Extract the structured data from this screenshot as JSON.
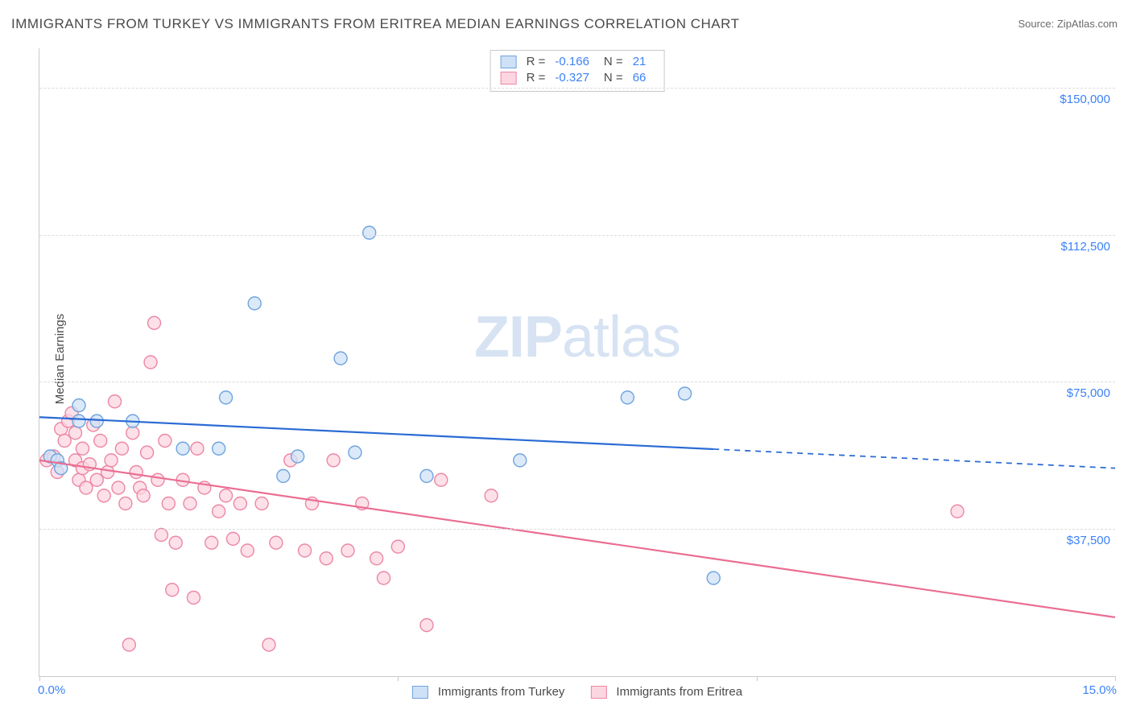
{
  "title": "IMMIGRANTS FROM TURKEY VS IMMIGRANTS FROM ERITREA MEDIAN EARNINGS CORRELATION CHART",
  "source_label": "Source: ZipAtlas.com",
  "yaxis_title": "Median Earnings",
  "watermark_bold": "ZIP",
  "watermark_light": "atlas",
  "chart": {
    "type": "scatter",
    "xlim": [
      0,
      15
    ],
    "ylim": [
      0,
      160000
    ],
    "x_tick_positions": [
      0,
      5,
      10,
      15
    ],
    "x_tick_labels": {
      "start": "0.0%",
      "end": "15.0%"
    },
    "y_gridlines": [
      37500,
      75000,
      112500,
      150000
    ],
    "y_tick_labels": [
      "$37,500",
      "$75,000",
      "$112,500",
      "$150,000"
    ],
    "background_color": "#ffffff",
    "grid_color": "#dcdcdc",
    "axis_color": "#c9c9c9",
    "label_color": "#3b82f6",
    "marker_radius": 8,
    "marker_stroke_width": 1.4,
    "trend_line_width": 2.2,
    "series": [
      {
        "key": "turkey",
        "label": "Immigrants from Turkey",
        "fill": "#cfe1f6",
        "stroke": "#6fa4de",
        "line_color": "#2a6bd4",
        "r_value": "-0.166",
        "n_value": "21",
        "trend": {
          "x1": 0,
          "y1": 66000,
          "x2": 15,
          "y2": 53000,
          "solid_until_x": 9.4
        },
        "points": [
          [
            0.15,
            56000
          ],
          [
            0.25,
            55000
          ],
          [
            0.55,
            65000
          ],
          [
            0.55,
            69000
          ],
          [
            0.8,
            65000
          ],
          [
            1.3,
            65000
          ],
          [
            2.0,
            58000
          ],
          [
            2.5,
            58000
          ],
          [
            2.6,
            71000
          ],
          [
            3.0,
            95000
          ],
          [
            3.4,
            51000
          ],
          [
            3.6,
            56000
          ],
          [
            4.2,
            81000
          ],
          [
            4.4,
            57000
          ],
          [
            4.6,
            113000
          ],
          [
            5.4,
            51000
          ],
          [
            6.7,
            55000
          ],
          [
            8.2,
            71000
          ],
          [
            9.0,
            72000
          ],
          [
            9.4,
            25000
          ],
          [
            0.3,
            53000
          ]
        ]
      },
      {
        "key": "eritrea",
        "label": "Immigrants from Eritrea",
        "fill": "#fcd6e0",
        "stroke": "#ec87a6",
        "line_color": "#ea6e93",
        "r_value": "-0.327",
        "n_value": "66",
        "trend": {
          "x1": 0,
          "y1": 55000,
          "x2": 15,
          "y2": 15000,
          "solid_until_x": 15
        },
        "points": [
          [
            0.1,
            55000
          ],
          [
            0.2,
            56000
          ],
          [
            0.25,
            52000
          ],
          [
            0.3,
            63000
          ],
          [
            0.35,
            60000
          ],
          [
            0.4,
            65000
          ],
          [
            0.45,
            67000
          ],
          [
            0.5,
            55000
          ],
          [
            0.5,
            62000
          ],
          [
            0.55,
            50000
          ],
          [
            0.6,
            53000
          ],
          [
            0.6,
            58000
          ],
          [
            0.65,
            48000
          ],
          [
            0.7,
            54000
          ],
          [
            0.75,
            64000
          ],
          [
            0.8,
            50000
          ],
          [
            0.85,
            60000
          ],
          [
            0.9,
            46000
          ],
          [
            0.95,
            52000
          ],
          [
            1.0,
            55000
          ],
          [
            1.05,
            70000
          ],
          [
            1.1,
            48000
          ],
          [
            1.15,
            58000
          ],
          [
            1.2,
            44000
          ],
          [
            1.25,
            8000
          ],
          [
            1.3,
            62000
          ],
          [
            1.35,
            52000
          ],
          [
            1.4,
            48000
          ],
          [
            1.45,
            46000
          ],
          [
            1.5,
            57000
          ],
          [
            1.55,
            80000
          ],
          [
            1.6,
            90000
          ],
          [
            1.65,
            50000
          ],
          [
            1.7,
            36000
          ],
          [
            1.75,
            60000
          ],
          [
            1.8,
            44000
          ],
          [
            1.85,
            22000
          ],
          [
            1.9,
            34000
          ],
          [
            2.0,
            50000
          ],
          [
            2.1,
            44000
          ],
          [
            2.2,
            58000
          ],
          [
            2.3,
            48000
          ],
          [
            2.4,
            34000
          ],
          [
            2.5,
            42000
          ],
          [
            2.6,
            46000
          ],
          [
            2.7,
            35000
          ],
          [
            2.8,
            44000
          ],
          [
            2.9,
            32000
          ],
          [
            3.1,
            44000
          ],
          [
            3.2,
            8000
          ],
          [
            3.3,
            34000
          ],
          [
            3.5,
            55000
          ],
          [
            3.7,
            32000
          ],
          [
            3.8,
            44000
          ],
          [
            4.0,
            30000
          ],
          [
            4.1,
            55000
          ],
          [
            4.3,
            32000
          ],
          [
            4.5,
            44000
          ],
          [
            4.7,
            30000
          ],
          [
            4.8,
            25000
          ],
          [
            5.0,
            33000
          ],
          [
            5.4,
            13000
          ],
          [
            5.6,
            50000
          ],
          [
            6.3,
            46000
          ],
          [
            12.8,
            42000
          ],
          [
            2.15,
            20000
          ]
        ]
      }
    ]
  },
  "legend_top_labels": {
    "R": "R =",
    "N": "N ="
  }
}
